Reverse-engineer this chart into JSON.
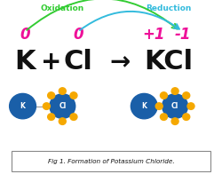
{
  "bg_color": "#ffffff",
  "title": "Fig 1. Formation of Potassium Chloride.",
  "oxidation_label": "Oxidation",
  "reduction_label": "Reduction",
  "oxidation_color": "#33cc33",
  "reduction_color": "#33bbdd",
  "state_color": "#ee1199",
  "k_color": "#1a5fa8",
  "cl_color": "#1a5fa8",
  "dot_color": "#f5a800",
  "k_label": "K",
  "cl_label": "Cl",
  "plus_label": "+",
  "arrow_label": "→",
  "kcl_label": "KCl",
  "states_left_k": "0",
  "states_left_cl": "0",
  "states_right_k": "+1",
  "states_right_cl": "-1",
  "main_text_color": "#111111",
  "xlim": [
    0,
    10
  ],
  "ylim": [
    0,
    8
  ]
}
